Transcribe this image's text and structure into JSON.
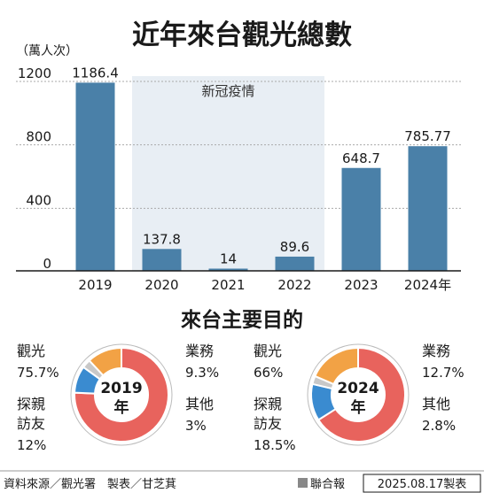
{
  "title": "近年來台觀光總數",
  "unit": "（萬人次）",
  "bar_chart_data": {
    "type": "bar",
    "categories": [
      "2019",
      "2020",
      "2021",
      "2022",
      "2023",
      "2024"
    ],
    "category_suffix_last": "年",
    "values": [
      1186.4,
      137.8,
      14,
      89.6,
      648.7,
      785.77
    ],
    "value_labels": [
      "1186.4",
      "137.8",
      "14",
      "89.6",
      "648.7",
      "785.77"
    ],
    "yticks": [
      "0",
      "400",
      "800",
      "1200"
    ],
    "ylim": [
      0,
      1250
    ],
    "bar_color": "#4a80a8",
    "shade_label": "新冠疫情",
    "shade_range": [
      "2020",
      "2022"
    ],
    "shade_color": "#e8eef4"
  },
  "section_title": "來台主要目的",
  "donuts": [
    {
      "year": "2019",
      "center_suffix": "年",
      "segments": [
        {
          "label": "觀光",
          "value": 75.7,
          "pct": "75.7%",
          "color": "#e8635d"
        },
        {
          "label": "業務",
          "value": 9.3,
          "pct": "9.3%",
          "color": "#3a8bd0"
        },
        {
          "label": "其他",
          "value": 3,
          "pct": "3%",
          "color": "#c8c8c8"
        },
        {
          "label": "探親訪友",
          "value": 12,
          "pct": "12%",
          "color": "#f2a245"
        }
      ]
    },
    {
      "year": "2024",
      "center_suffix": "年",
      "segments": [
        {
          "label": "觀光",
          "value": 66,
          "pct": "66%",
          "color": "#e8635d"
        },
        {
          "label": "業務",
          "value": 12.7,
          "pct": "12.7%",
          "color": "#3a8bd0"
        },
        {
          "label": "其他",
          "value": 2.8,
          "pct": "2.8%",
          "color": "#c8c8c8"
        },
        {
          "label": "探親訪友",
          "value": 18.5,
          "pct": "18.5%",
          "color": "#f2a245"
        }
      ]
    }
  ],
  "footer": {
    "source": "資料來源／觀光署　製表／甘芝萁",
    "publisher": "聯合報",
    "date": "2025.08.17製表"
  }
}
